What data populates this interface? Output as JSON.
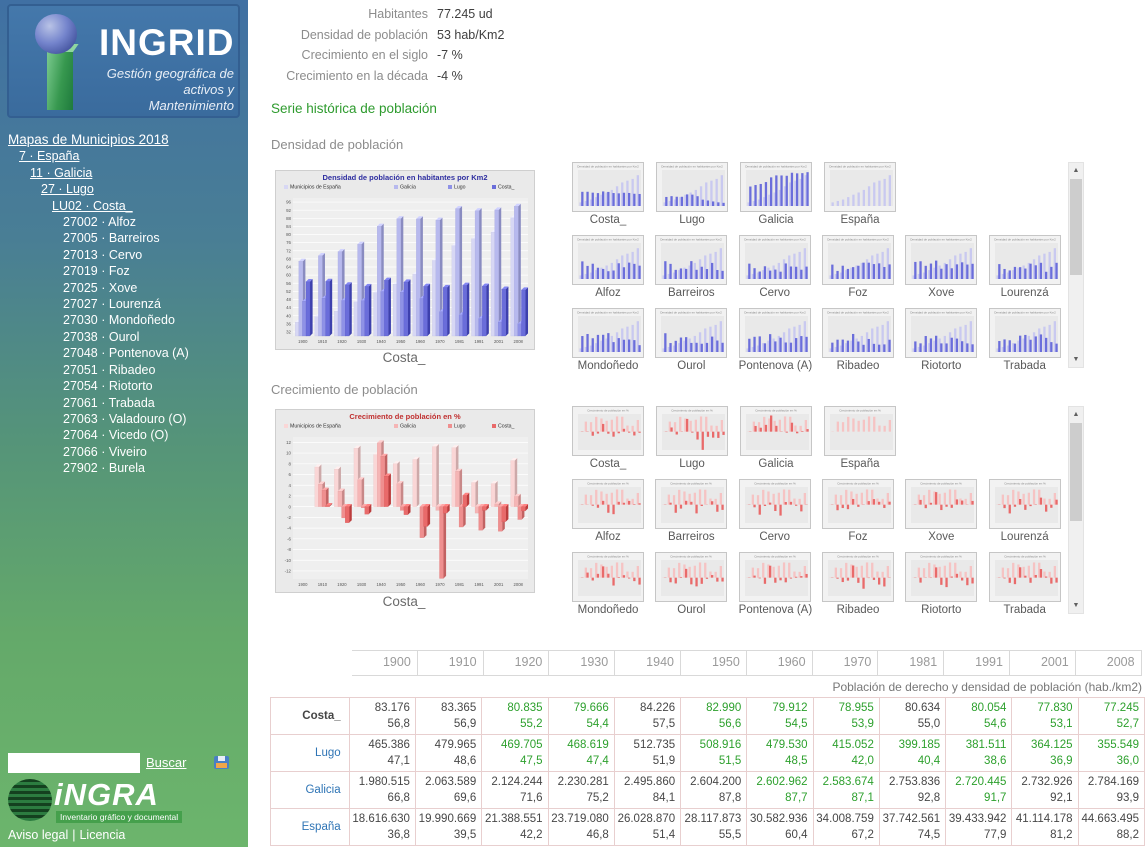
{
  "sidebar": {
    "logo": {
      "title": "INGRID",
      "tagline1": "Gestión geográfica de",
      "tagline2": "activos y Mantenimiento"
    },
    "nav": [
      {
        "label": "Mapas de Municipios 2018",
        "indent": 0,
        "link": true,
        "root": true
      },
      {
        "label": "7 · España",
        "indent": 1,
        "link": true
      },
      {
        "label": "11 · Galicia",
        "indent": 2,
        "link": true
      },
      {
        "label": "27 · Lugo",
        "indent": 3,
        "link": true
      },
      {
        "label": "LU02 · Costa_ ",
        "indent": 4,
        "link": true
      },
      {
        "label": "27002 · Alfoz",
        "indent": 5,
        "link": false
      },
      {
        "label": "27005 · Barreiros",
        "indent": 5,
        "link": false
      },
      {
        "label": "27013 · Cervo",
        "indent": 5,
        "link": false
      },
      {
        "label": "27019 · Foz",
        "indent": 5,
        "link": false
      },
      {
        "label": "27025 · Xove",
        "indent": 5,
        "link": false
      },
      {
        "label": "27027 · Lourenzá",
        "indent": 5,
        "link": false
      },
      {
        "label": "27030 · Mondoñedo",
        "indent": 5,
        "link": false
      },
      {
        "label": "27038 · Ourol",
        "indent": 5,
        "link": false
      },
      {
        "label": "27048 · Pontenova (A)",
        "indent": 5,
        "link": false
      },
      {
        "label": "27051 · Ribadeo",
        "indent": 5,
        "link": false
      },
      {
        "label": "27054 · Riotorto",
        "indent": 5,
        "link": false
      },
      {
        "label": "27061 · Trabada",
        "indent": 5,
        "link": false
      },
      {
        "label": "27063 · Valadouro (O)",
        "indent": 5,
        "link": false
      },
      {
        "label": "27064 · Vicedo (O)",
        "indent": 5,
        "link": false
      },
      {
        "label": "27066 · Viveiro",
        "indent": 5,
        "link": false
      },
      {
        "label": "27902 · Burela",
        "indent": 5,
        "link": false
      }
    ],
    "search": {
      "placeholder": "",
      "button": "Buscar"
    },
    "ingra": {
      "name": "iNGRA",
      "tagline": "Inventario gráfico y documental"
    },
    "footer": {
      "link1": "Aviso legal",
      "separator": "|",
      "link2": "Licencia"
    }
  },
  "stats": [
    {
      "label": "Habitantes",
      "value": "77.245 ud"
    },
    {
      "label": "Densidad de población",
      "value": "53 hab/Km2"
    },
    {
      "label": "Crecimiento en el siglo",
      "value": "-7 %"
    },
    {
      "label": "Crecimiento en la década",
      "value": "-4 %"
    }
  ],
  "series_heading": "Serie histórica de población",
  "density_section": {
    "title": "Densidad de población",
    "caption": "Costa_"
  },
  "growth_section": {
    "title": "Crecimiento de población",
    "caption": "Costa_"
  },
  "thumbnail_labels": [
    "Costa_",
    "Lugo",
    "Galicia",
    "España",
    "Alfoz",
    "Barreiros",
    "Cervo",
    "Foz",
    "Xove",
    "Lourenzá",
    "Mondoñedo",
    "Ourol",
    "Pontenova (A)",
    "Ribadeo",
    "Riotorto",
    "Trabada"
  ],
  "chart_data": [
    {
      "type": "bar",
      "title": "Densidad de población en habitantes por Km2",
      "title_color": "#2e2ea0",
      "categories": [
        "1900",
        "1910",
        "1920",
        "1930",
        "1940",
        "1950",
        "1960",
        "1970",
        "1981",
        "1991",
        "2001",
        "2008"
      ],
      "series": [
        {
          "name": "Municipios de España",
          "values": [
            36.8,
            39.5,
            42.2,
            46.8,
            51.4,
            55.5,
            60.4,
            67.2,
            74.5,
            77.9,
            81.2,
            88.2
          ]
        },
        {
          "name": "Galicia",
          "values": [
            66.8,
            69.6,
            71.6,
            75.2,
            84.1,
            87.8,
            87.7,
            87.1,
            92.8,
            91.7,
            92.1,
            93.9
          ]
        },
        {
          "name": "Lugo",
          "values": [
            47.1,
            48.6,
            47.5,
            47.4,
            51.9,
            51.5,
            48.5,
            42.0,
            40.4,
            38.6,
            36.9,
            36.0
          ]
        },
        {
          "name": "Costa_",
          "values": [
            56.8,
            56.9,
            55.2,
            54.4,
            57.5,
            56.6,
            54.5,
            53.9,
            55.0,
            54.6,
            53.1,
            52.7
          ]
        }
      ],
      "xlabel": "",
      "ylabel": "",
      "ylim": [
        30,
        98
      ],
      "ytick_step": 4,
      "grid": true,
      "legend_position": "top",
      "caption": "Costa_"
    },
    {
      "type": "bar",
      "title": "Crecimiento de población en %",
      "title_color": "#c03030",
      "categories": [
        "1900",
        "1910",
        "1920",
        "1930",
        "1940",
        "1950",
        "1960",
        "1970",
        "1981",
        "1991",
        "2001",
        "2008"
      ],
      "series": [
        {
          "name": "Municipios de España",
          "values": [
            0,
            7.4,
            7.0,
            10.9,
            9.7,
            8.0,
            8.8,
            11.2,
            11.0,
            4.5,
            4.3,
            8.6
          ]
        },
        {
          "name": "Galicia",
          "values": [
            0,
            4.2,
            2.9,
            5.0,
            11.9,
            4.3,
            0.0,
            -0.7,
            6.6,
            -1.2,
            0.5,
            1.9
          ]
        },
        {
          "name": "Lugo",
          "values": [
            0,
            3.1,
            -2.1,
            -0.2,
            9.4,
            -0.7,
            -5.8,
            -13.4,
            -3.8,
            -4.4,
            -4.6,
            -2.4
          ]
        },
        {
          "name": "Costa_",
          "values": [
            0,
            0.2,
            -3.0,
            -1.4,
            5.7,
            -1.5,
            -3.7,
            -1.2,
            2.1,
            -0.7,
            -2.8,
            -0.8
          ]
        }
      ],
      "xlabel": "",
      "ylabel": "",
      "ylim": [
        -13.5,
        13
      ],
      "ytick_step": 2,
      "grid": true,
      "legend_position": "top",
      "caption": "Costa_"
    }
  ],
  "table": {
    "years": [
      "1900",
      "1910",
      "1920",
      "1930",
      "1940",
      "1950",
      "1960",
      "1970",
      "1981",
      "1991",
      "2001",
      "2008"
    ],
    "caption": "Población de derecho y densidad de población (hab./km2)",
    "rows": [
      {
        "label": "Costa_",
        "link": false,
        "cells": [
          [
            "83.176",
            "56,8",
            "d"
          ],
          [
            "83.365",
            "56,9",
            "d"
          ],
          [
            "80.835",
            "55,2",
            "g"
          ],
          [
            "79.666",
            "54,4",
            "g"
          ],
          [
            "84.226",
            "57,5",
            "d"
          ],
          [
            "82.990",
            "56,6",
            "g"
          ],
          [
            "79.912",
            "54,5",
            "g"
          ],
          [
            "78.955",
            "53,9",
            "g"
          ],
          [
            "80.634",
            "55,0",
            "d"
          ],
          [
            "80.054",
            "54,6",
            "g"
          ],
          [
            "77.830",
            "53,1",
            "g"
          ],
          [
            "77.245",
            "52,7",
            "g"
          ]
        ]
      },
      {
        "label": "Lugo",
        "link": true,
        "cells": [
          [
            "465.386",
            "47,1",
            "d"
          ],
          [
            "479.965",
            "48,6",
            "d"
          ],
          [
            "469.705",
            "47,5",
            "g"
          ],
          [
            "468.619",
            "47,4",
            "g"
          ],
          [
            "512.735",
            "51,9",
            "d"
          ],
          [
            "508.916",
            "51,5",
            "g"
          ],
          [
            "479.530",
            "48,5",
            "g"
          ],
          [
            "415.052",
            "42,0",
            "g"
          ],
          [
            "399.185",
            "40,4",
            "g"
          ],
          [
            "381.511",
            "38,6",
            "g"
          ],
          [
            "364.125",
            "36,9",
            "g"
          ],
          [
            "355.549",
            "36,0",
            "g"
          ]
        ]
      },
      {
        "label": "Galicia",
        "link": true,
        "cells": [
          [
            "1.980.515",
            "66,8",
            "d"
          ],
          [
            "2.063.589",
            "69,6",
            "d"
          ],
          [
            "2.124.244",
            "71,6",
            "d"
          ],
          [
            "2.230.281",
            "75,2",
            "d"
          ],
          [
            "2.495.860",
            "84,1",
            "d"
          ],
          [
            "2.604.200",
            "87,8",
            "d"
          ],
          [
            "2.602.962",
            "87,7",
            "g"
          ],
          [
            "2.583.674",
            "87,1",
            "g"
          ],
          [
            "2.753.836",
            "92,8",
            "d"
          ],
          [
            "2.720.445",
            "91,7",
            "g"
          ],
          [
            "2.732.926",
            "92,1",
            "d"
          ],
          [
            "2.784.169",
            "93,9",
            "d"
          ]
        ]
      },
      {
        "label": "España",
        "link": true,
        "cells": [
          [
            "18.616.630",
            "36,8",
            "d"
          ],
          [
            "19.990.669",
            "39,5",
            "d"
          ],
          [
            "21.388.551",
            "42,2",
            "d"
          ],
          [
            "23.719.080",
            "46,8",
            "d"
          ],
          [
            "26.028.870",
            "51,4",
            "d"
          ],
          [
            "28.117.873",
            "55,5",
            "d"
          ],
          [
            "30.582.936",
            "60,4",
            "d"
          ],
          [
            "34.008.759",
            "67,2",
            "d"
          ],
          [
            "37.742.561",
            "74,5",
            "d"
          ],
          [
            "39.433.942",
            "77,9",
            "d"
          ],
          [
            "41.114.178",
            "81,2",
            "d"
          ],
          [
            "44.663.495",
            "88,2",
            "d"
          ]
        ]
      }
    ]
  },
  "colors": {
    "accent_green": "#2e9b2e",
    "link_blue": "#2e74b5",
    "value_green": "#2da02d",
    "value_dark": "#474747",
    "density_palette": [
      "#d7d7f4",
      "#b7b9ee",
      "#8f92e6",
      "#6a6dda"
    ],
    "growth_palette": [
      "#fad6d6",
      "#f5b5b5",
      "#ef8f8f",
      "#e96a6a"
    ],
    "sidebar_top": "#4070a3",
    "sidebar_bottom": "#6cb56c"
  }
}
